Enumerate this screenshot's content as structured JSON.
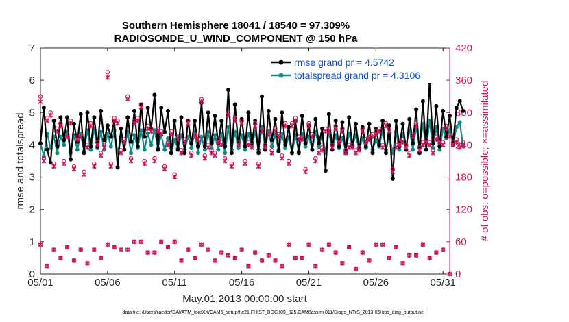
{
  "chart_data": {
    "type": "line",
    "title_line1": "Southern Hemisphere 18041 / 18540 = 97.309%",
    "title_line2": "RADIOSONDE_U_WIND_COMPONENT @ 150 hPa",
    "xlabel": "May.01,2013 00:00:00 start",
    "ylabel_left": "rmse and totalspread",
    "ylabel_right": "# of obs: o=possible; ×=assimilated",
    "xlim": [
      1,
      31.5
    ],
    "ylim_left": [
      0,
      7
    ],
    "ylim_right": [
      0,
      420
    ],
    "x_ticks": [
      1,
      6,
      11,
      16,
      21,
      26,
      31
    ],
    "x_tick_labels": [
      "05/01",
      "05/06",
      "05/11",
      "05/16",
      "05/21",
      "05/26",
      "05/31"
    ],
    "y_left_ticks": [
      "0",
      "1",
      "2",
      "3",
      "4",
      "5",
      "6",
      "7"
    ],
    "y_right_ticks": [
      "0",
      "60",
      "120",
      "180",
      "240",
      "300",
      "360",
      "420"
    ],
    "legend": [
      {
        "label": "rmse grand pr = 4.5742",
        "color": "#000000"
      },
      {
        "label": "totalspread grand pr = 4.3106",
        "color": "#11898a"
      }
    ],
    "footnote": "data file: /Users/raeder/DAI/ATM_forcXX/CAM6_setup/f.e21.FHIST_BGC.f09_025.CAM6assim.011/Diags_NTrS_2013-05/obs_diag_output.nc",
    "colors": {
      "rmse": "#000000",
      "spread": "#11898a",
      "obs": "#d4145a"
    },
    "step_days": 0.25,
    "series": [
      {
        "name": "rmse",
        "values": [
          4.05,
          5.15,
          3.85,
          3.45,
          4.75,
          3.95,
          4.85,
          4.15,
          4.85,
          3.55,
          4.65,
          4.1,
          4.95,
          3.75,
          5.0,
          3.95,
          4.85,
          3.95,
          5.05,
          4.15,
          4.6,
          4.25,
          4.75,
          3.3,
          4.5,
          3.85,
          4.85,
          4.1,
          5.05,
          3.95,
          5.25,
          4.25,
          5.15,
          4.5,
          5.55,
          3.85,
          5.15,
          4.4,
          5.05,
          3.75,
          4.75,
          3.85,
          4.85,
          3.75,
          4.75,
          4.05,
          4.75,
          3.95,
          5.3,
          3.95,
          5.0,
          4.05,
          4.9,
          4.05,
          4.75,
          3.95,
          5.7,
          3.75,
          5.25,
          4.0,
          4.8,
          3.95,
          5.0,
          4.05,
          4.75,
          3.75,
          5.5,
          3.85,
          5.05,
          4.15,
          4.8,
          3.8,
          5.0,
          4.0,
          4.55,
          3.75,
          4.75,
          3.75,
          4.9,
          4.05,
          4.6,
          3.85,
          4.8,
          4.05,
          4.5,
          3.2,
          4.95,
          3.85,
          4.75,
          3.95,
          4.7,
          3.75,
          4.85,
          3.95,
          4.65,
          3.85,
          4.55,
          3.95,
          4.65,
          3.75,
          4.5,
          4.0,
          4.75,
          3.75,
          4.6,
          2.95,
          4.75,
          3.95,
          4.65,
          3.85,
          4.8,
          4.05,
          5.1,
          3.75,
          5.35,
          3.85,
          5.95,
          4.05,
          5.2,
          3.95,
          5.05,
          4.25,
          4.9,
          4.05,
          5.15,
          5.35,
          5.05
        ]
      },
      {
        "name": "totalspread",
        "values": [
          4.05,
          3.65,
          4.35,
          3.9,
          4.25,
          3.75,
          4.25,
          4.0,
          4.4,
          3.75,
          4.3,
          3.85,
          4.35,
          3.8,
          4.45,
          3.85,
          4.5,
          3.9,
          4.4,
          3.85,
          4.35,
          3.95,
          4.45,
          3.75,
          4.25,
          3.85,
          4.4,
          3.75,
          4.3,
          3.9,
          4.45,
          3.85,
          4.35,
          4.0,
          4.45,
          3.9,
          4.3,
          3.85,
          4.2,
          3.75,
          4.15,
          3.9,
          4.3,
          3.85,
          4.25,
          3.9,
          4.4,
          3.75,
          4.25,
          3.85,
          4.4,
          3.9,
          4.3,
          3.85,
          4.35,
          3.75,
          4.55,
          3.85,
          4.4,
          3.9,
          4.3,
          3.85,
          4.35,
          3.95,
          4.4,
          3.85,
          4.55,
          3.9,
          4.4,
          3.95,
          4.3,
          3.85,
          4.35,
          3.9,
          4.25,
          3.75,
          4.3,
          3.8,
          4.35,
          3.95,
          4.25,
          3.85,
          4.4,
          3.95,
          4.35,
          3.75,
          4.4,
          3.85,
          4.3,
          3.9,
          4.2,
          3.85,
          4.35,
          3.95,
          4.3,
          3.85,
          4.2,
          3.9,
          4.25,
          3.85,
          4.15,
          3.95,
          4.45,
          3.85,
          4.3,
          3.75,
          4.4,
          3.85,
          4.35,
          3.95,
          4.5,
          3.85,
          4.55,
          3.95,
          4.65,
          3.85,
          4.75,
          3.9,
          4.55,
          3.85,
          4.5,
          4.2,
          4.45,
          4.0,
          4.55,
          4.7,
          3.95
        ]
      }
    ],
    "obs_possible": [
      330,
      215,
      290,
      300,
      205,
      270,
      280,
      210,
      260,
      285,
      200,
      255,
      260,
      190,
      240,
      280,
      205,
      245,
      225,
      240,
      375,
      205,
      290,
      285,
      230,
      250,
      330,
      215,
      285,
      290,
      315,
      210,
      275,
      270,
      215,
      270,
      265,
      200,
      245,
      265,
      185,
      255,
      230,
      250,
      285,
      225,
      260,
      255,
      325,
      220,
      240,
      230,
      225,
      250,
      245,
      215,
      300,
      205,
      290,
      245,
      285,
      210,
      245,
      240,
      280,
      205,
      270,
      240,
      265,
      230,
      270,
      260,
      220,
      280,
      210,
      280,
      290,
      255,
      255,
      195,
      280,
      260,
      215,
      230,
      235,
      270,
      270,
      240,
      275,
      250,
      270,
      230,
      240,
      240,
      230,
      235,
      270,
      250,
      255,
      260,
      265,
      270,
      240,
      280,
      270,
      195,
      240,
      245,
      250,
      240,
      225,
      260,
      280,
      235,
      245,
      250,
      245,
      230,
      255,
      250,
      245,
      275,
      260,
      245,
      250,
      240,
      245
    ],
    "obs_assimilated": [
      320,
      210,
      285,
      295,
      200,
      265,
      275,
      205,
      255,
      280,
      195,
      250,
      255,
      185,
      235,
      275,
      200,
      240,
      220,
      235,
      365,
      200,
      285,
      280,
      225,
      245,
      325,
      210,
      280,
      285,
      310,
      205,
      270,
      265,
      210,
      265,
      260,
      195,
      240,
      260,
      180,
      250,
      225,
      245,
      280,
      220,
      255,
      250,
      320,
      215,
      235,
      225,
      220,
      245,
      240,
      210,
      295,
      200,
      285,
      240,
      280,
      205,
      240,
      235,
      275,
      200,
      265,
      235,
      260,
      225,
      265,
      255,
      215,
      275,
      205,
      275,
      285,
      250,
      250,
      190,
      275,
      255,
      210,
      225,
      230,
      265,
      265,
      235,
      270,
      245,
      265,
      225,
      235,
      235,
      225,
      230,
      265,
      245,
      250,
      255,
      260,
      265,
      235,
      275,
      265,
      190,
      235,
      240,
      245,
      235,
      220,
      255,
      275,
      230,
      240,
      245,
      240,
      225,
      250,
      245,
      240,
      270,
      255,
      240,
      245,
      235,
      240
    ],
    "obs_count_x": [
      1.0,
      1.5,
      2.0,
      2.5,
      3.0,
      3.5,
      4.0,
      4.5,
      5.0,
      5.5,
      6.0,
      6.5,
      7.0,
      7.5,
      8.0,
      8.5,
      9.0,
      9.5,
      10.0,
      10.5,
      11.0,
      11.5,
      12.0,
      12.5,
      13.0,
      13.5,
      14.0,
      14.5,
      15.0,
      15.5,
      16.0,
      16.5,
      17.0,
      17.5,
      18.0,
      18.5,
      19.0,
      19.5,
      20.0,
      20.5,
      21.0,
      21.5,
      22.0,
      22.5,
      23.0,
      23.5,
      24.0,
      24.5,
      25.0,
      25.5,
      26.0,
      26.5,
      27.0,
      27.5,
      28.0,
      28.5,
      29.0,
      29.5,
      30.0,
      30.5,
      31.0,
      31.5
    ],
    "obs_count_low_possible": [
      55,
      15,
      45,
      30,
      50,
      25,
      45,
      20,
      45,
      30,
      55,
      50,
      45,
      45,
      60,
      60,
      40,
      40,
      60,
      50,
      60,
      25,
      45,
      30,
      55,
      45,
      25,
      40,
      35,
      30,
      45,
      15,
      40,
      25,
      35,
      25,
      15,
      55,
      30,
      30,
      55,
      15,
      45,
      55,
      40,
      20,
      50,
      10,
      40,
      25,
      55,
      55,
      30,
      50,
      20,
      35,
      35,
      55,
      30,
      40,
      45,
      0
    ],
    "obs_count_low_assimilated": [
      55,
      15,
      45,
      30,
      50,
      25,
      45,
      20,
      45,
      30,
      55,
      50,
      45,
      45,
      60,
      60,
      40,
      40,
      60,
      50,
      60,
      25,
      45,
      30,
      55,
      45,
      25,
      40,
      35,
      30,
      45,
      15,
      40,
      25,
      35,
      25,
      15,
      55,
      30,
      30,
      55,
      15,
      45,
      55,
      40,
      20,
      50,
      10,
      40,
      25,
      55,
      55,
      30,
      50,
      20,
      35,
      35,
      55,
      30,
      40,
      45,
      0
    ]
  }
}
